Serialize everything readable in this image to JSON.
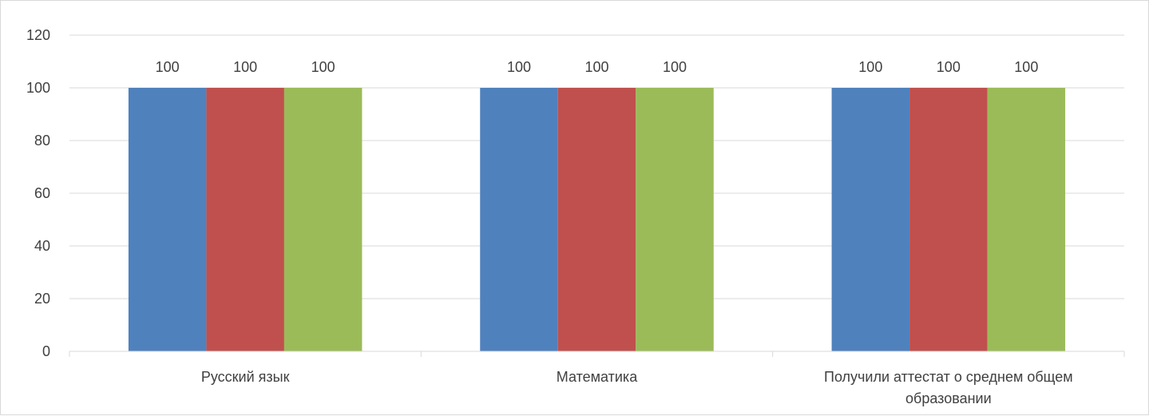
{
  "chart_data": {
    "type": "bar",
    "categories": [
      [
        "Русский язык"
      ],
      [
        "Математика"
      ],
      [
        "Получили аттестат  о среднем общем",
        "образовании"
      ]
    ],
    "series": [
      {
        "values": [
          100,
          100,
          100
        ],
        "color": "#4f81bd"
      },
      {
        "values": [
          100,
          100,
          100
        ],
        "color": "#c0504d"
      },
      {
        "values": [
          100,
          100,
          100
        ],
        "color": "#9bbb59"
      }
    ],
    "data_labels": true,
    "ylim": [
      0,
      120
    ],
    "yticks": [
      0,
      20,
      40,
      60,
      80,
      100,
      120
    ],
    "grid": true,
    "legend": "none"
  }
}
